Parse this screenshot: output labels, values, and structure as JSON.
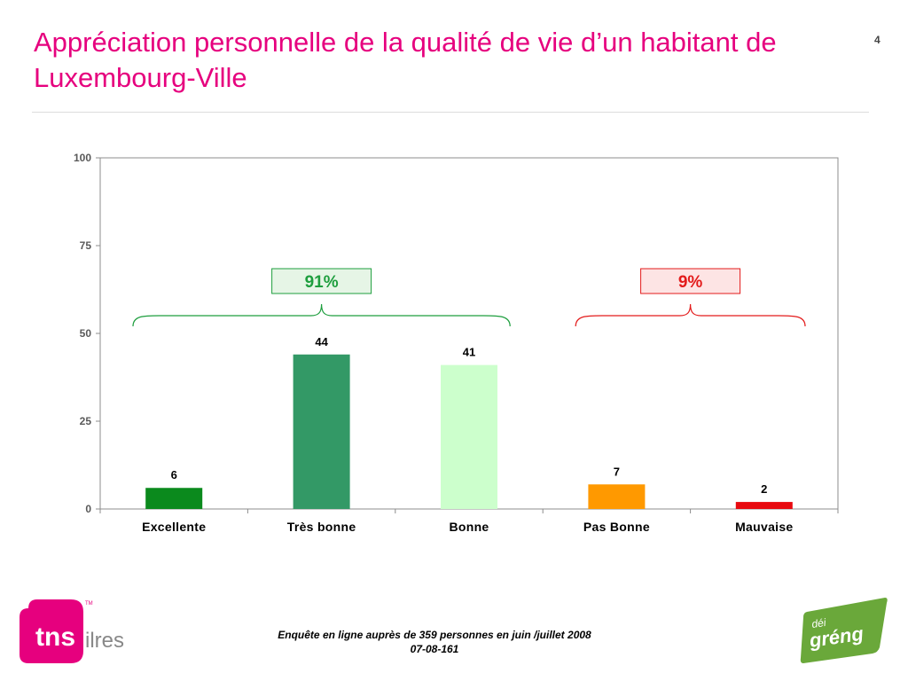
{
  "page": {
    "title": "Appréciation personnelle de la qualité de vie d’un habitant de Luxembourg-Ville",
    "page_number": "4",
    "footer_line1": "Enquête en ligne auprès de 359 personnes en juin /juillet 2008",
    "footer_line2": "07-08-161"
  },
  "logos": {
    "tns_mark": "tns",
    "tns_tm": "TM",
    "tns_suffix": "ilres",
    "greng_top": "déi",
    "greng_main": "gréng"
  },
  "colors": {
    "title": "#e6007e",
    "positive_group": "#1e9e3e",
    "negative_group": "#e31b1b",
    "tns_brand": "#e6007e",
    "greng_brand": "#6aa83a"
  },
  "chart_data": {
    "type": "bar",
    "title": "",
    "xlabel": "",
    "ylabel": "",
    "ylim": [
      0,
      100
    ],
    "yticks": [
      0,
      25,
      50,
      75,
      100
    ],
    "grid": false,
    "categories": [
      "Excellente",
      "Très bonne",
      "Bonne",
      "Pas Bonne",
      "Mauvaise"
    ],
    "values": [
      6,
      44,
      41,
      7,
      2
    ],
    "bar_colors": [
      "#0b8a1d",
      "#339966",
      "#ccffcc",
      "#ff9900",
      "#e8090f"
    ],
    "groups": [
      {
        "label": "91%",
        "from": 0,
        "to": 2,
        "color": "#1e9e3e",
        "box_fill": "#e6f5e6"
      },
      {
        "label": "9%",
        "from": 3,
        "to": 4,
        "color": "#e31b1b",
        "box_fill": "#fde4e4"
      }
    ]
  }
}
